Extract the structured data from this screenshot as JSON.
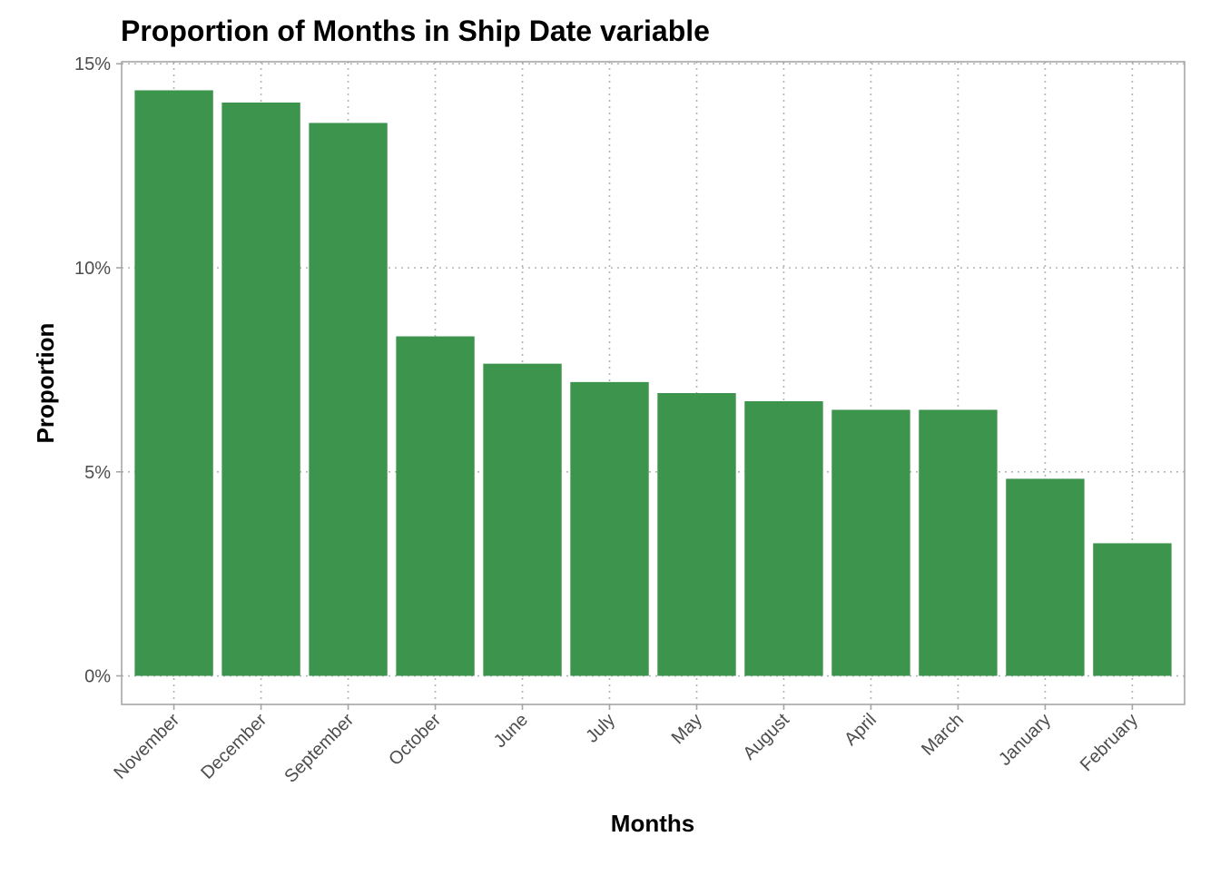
{
  "chart_data": {
    "type": "bar",
    "title": "Proportion of Months in Ship Date variable",
    "xlabel": "Months",
    "ylabel": "Proportion",
    "categories": [
      "November",
      "December",
      "September",
      "October",
      "June",
      "July",
      "May",
      "August",
      "April",
      "March",
      "January",
      "February"
    ],
    "values": [
      14.35,
      14.05,
      13.55,
      8.32,
      7.65,
      7.2,
      6.93,
      6.73,
      6.52,
      6.52,
      4.83,
      3.25
    ],
    "value_unit": "%",
    "ylim": [
      -0.7,
      15.05
    ],
    "yticks": [
      0,
      5,
      10,
      15
    ],
    "ytick_labels": [
      "0%",
      "5%",
      "10%",
      "15%"
    ],
    "grid": true,
    "legend": "none",
    "bar_color": "#3d944d"
  }
}
